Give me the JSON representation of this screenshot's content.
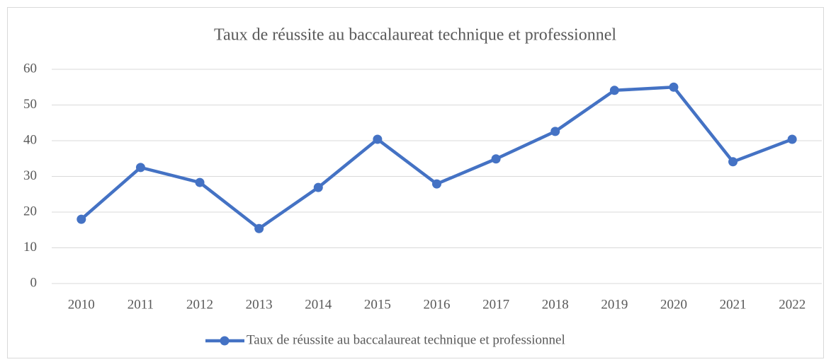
{
  "chart_data": {
    "type": "line",
    "title": "Taux de réussite au baccalaureat technique et professionnel",
    "categories": [
      "2010",
      "2011",
      "2012",
      "2013",
      "2014",
      "2015",
      "2016",
      "2017",
      "2018",
      "2019",
      "2020",
      "2021",
      "2022"
    ],
    "series": [
      {
        "name": "Taux de réussite au baccalaureat technique et professionnel",
        "color": "#4472c4",
        "values": [
          18.0,
          32.5,
          28.3,
          15.4,
          26.9,
          40.4,
          27.9,
          34.9,
          42.6,
          54.1,
          55.0,
          34.1,
          40.4
        ]
      }
    ],
    "ylim": [
      0,
      60
    ],
    "yticks": [
      0,
      10,
      20,
      30,
      40,
      50,
      60
    ],
    "grid": true,
    "legend": "bottom"
  }
}
